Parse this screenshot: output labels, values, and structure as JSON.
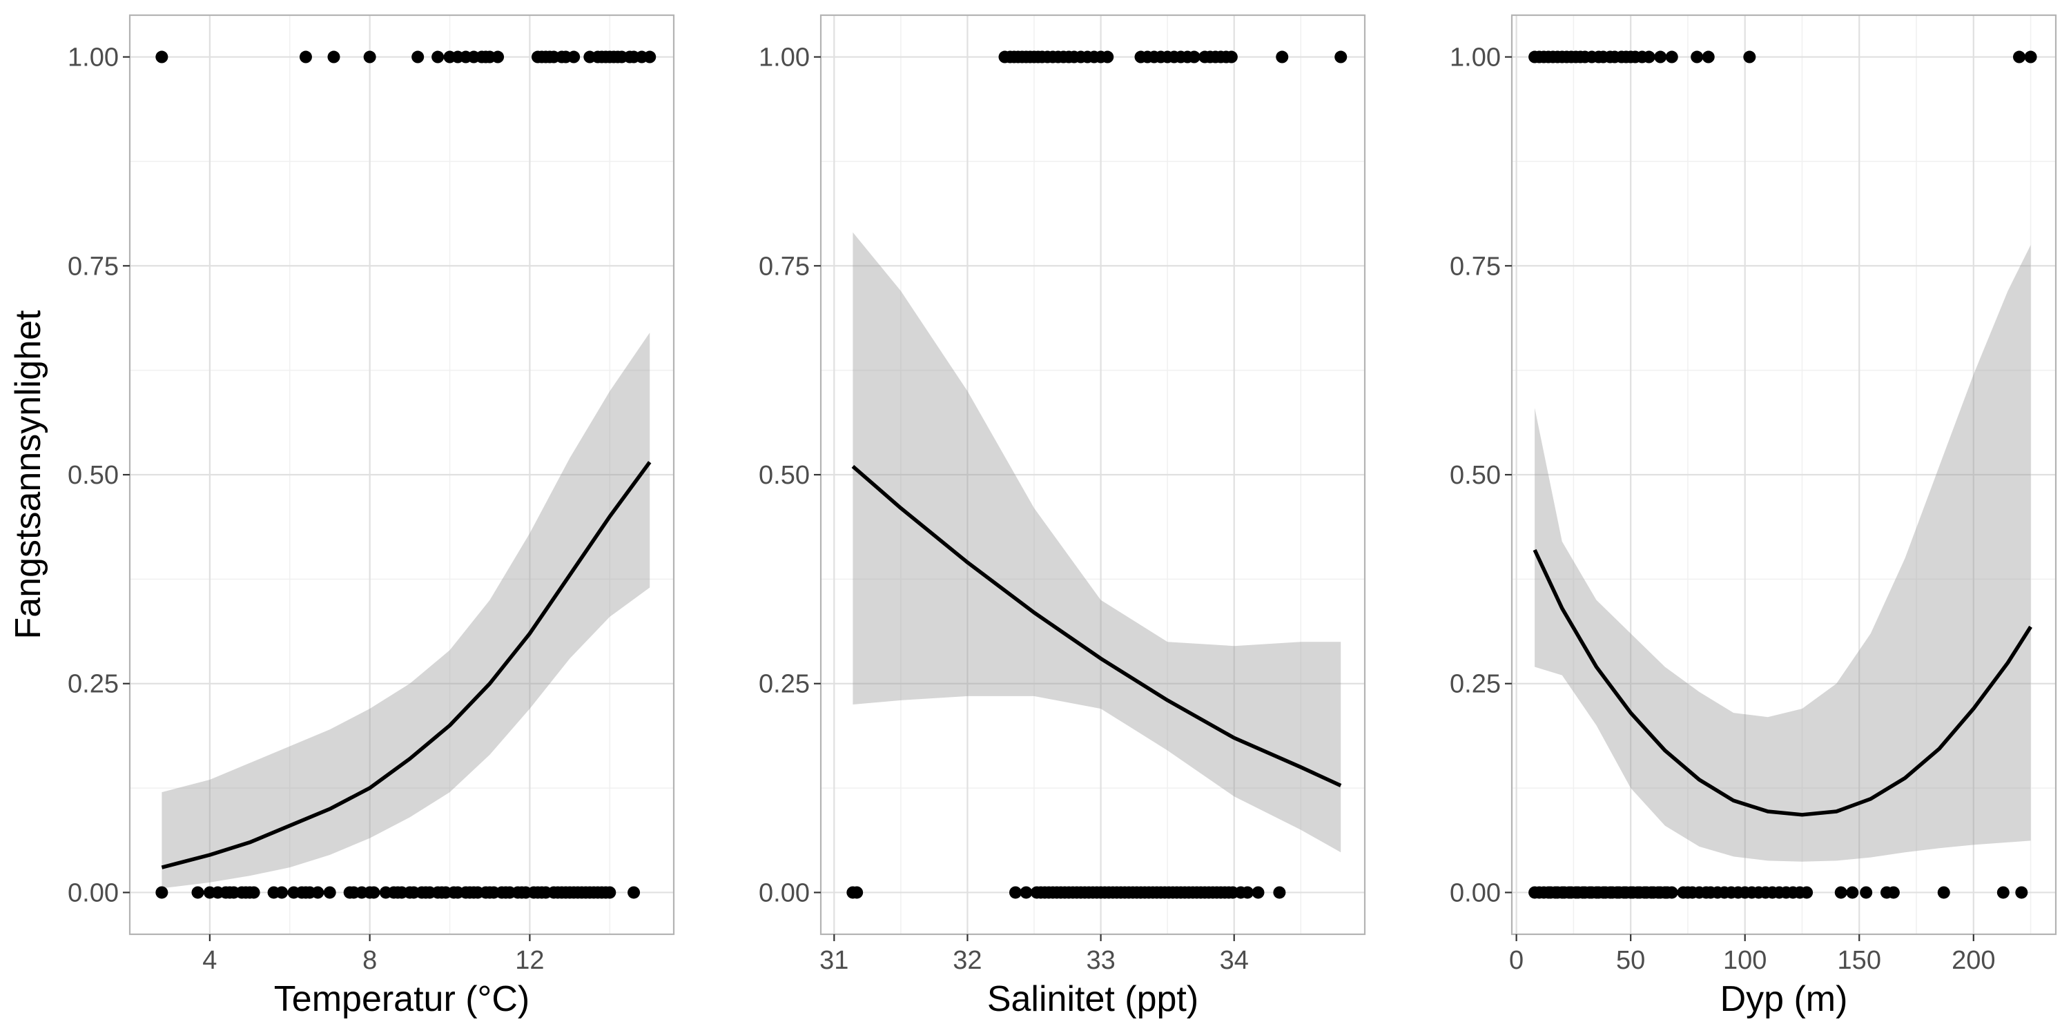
{
  "figure": {
    "ylabel": "Fangstsannsynlighet"
  },
  "chart_data": [
    {
      "type": "scatter",
      "xlabel": "Temperatur (°C)",
      "ylabel": "Fangstsannsynlighet",
      "xlim": [
        2.0,
        15.6
      ],
      "ylim": [
        -0.05,
        1.05
      ],
      "x_ticks": [
        4,
        8,
        12
      ],
      "y_ticks": [
        0.0,
        0.25,
        0.5,
        0.75,
        1.0
      ],
      "y_tick_labels": [
        "0.00",
        "0.25",
        "0.50",
        "0.75",
        "1.00"
      ],
      "grid": true,
      "points_y1": [
        2.8,
        6.4,
        7.1,
        8.0,
        9.2,
        9.7,
        10.0,
        10.2,
        10.4,
        10.6,
        10.8,
        10.9,
        11.0,
        11.2,
        12.2,
        12.3,
        12.4,
        12.5,
        12.6,
        12.8,
        12.9,
        13.1,
        13.5,
        13.7,
        13.8,
        13.9,
        14.0,
        14.1,
        14.2,
        14.3,
        14.5,
        14.6,
        14.8,
        15.0
      ],
      "points_y0": [
        2.8,
        3.7,
        4.0,
        4.2,
        4.4,
        4.5,
        4.6,
        4.8,
        4.9,
        5.0,
        5.1,
        5.6,
        5.8,
        6.1,
        6.3,
        6.4,
        6.5,
        6.7,
        7.0,
        7.5,
        7.6,
        7.8,
        8.0,
        8.1,
        8.4,
        8.6,
        8.7,
        8.8,
        9.0,
        9.1,
        9.3,
        9.4,
        9.5,
        9.7,
        9.8,
        9.9,
        10.1,
        10.2,
        10.4,
        10.5,
        10.6,
        10.7,
        10.9,
        11.0,
        11.1,
        11.3,
        11.4,
        11.5,
        11.7,
        11.8,
        11.9,
        12.1,
        12.2,
        12.3,
        12.4,
        12.6,
        12.7,
        12.8,
        12.9,
        13.0,
        13.1,
        13.2,
        13.3,
        13.4,
        13.5,
        13.6,
        13.7,
        13.8,
        13.9,
        14.0,
        14.6
      ],
      "fit": {
        "x": [
          2.8,
          4.0,
          5.0,
          6.0,
          7.0,
          8.0,
          9.0,
          10.0,
          11.0,
          12.0,
          13.0,
          14.0,
          15.0
        ],
        "y": [
          0.03,
          0.045,
          0.06,
          0.08,
          0.1,
          0.125,
          0.16,
          0.2,
          0.25,
          0.31,
          0.38,
          0.45,
          0.515
        ],
        "lower": [
          0.005,
          0.012,
          0.02,
          0.03,
          0.045,
          0.065,
          0.09,
          0.12,
          0.165,
          0.22,
          0.28,
          0.33,
          0.365
        ],
        "upper": [
          0.12,
          0.135,
          0.155,
          0.175,
          0.195,
          0.22,
          0.25,
          0.29,
          0.35,
          0.43,
          0.52,
          0.6,
          0.67
        ]
      }
    },
    {
      "type": "scatter",
      "xlabel": "Salinitet (ppt)",
      "ylabel": "",
      "xlim": [
        30.9,
        34.98
      ],
      "ylim": [
        -0.05,
        1.05
      ],
      "x_ticks": [
        31,
        32,
        33,
        34
      ],
      "y_ticks": [
        0.0,
        0.25,
        0.5,
        0.75,
        1.0
      ],
      "y_tick_labels": [
        "0.00",
        "0.25",
        "0.50",
        "0.75",
        "1.00"
      ],
      "grid": true,
      "points_y1": [
        32.28,
        32.32,
        32.35,
        32.38,
        32.41,
        32.44,
        32.47,
        32.5,
        32.53,
        32.56,
        32.6,
        32.64,
        32.68,
        32.72,
        32.76,
        32.8,
        32.85,
        32.9,
        32.95,
        33.0,
        33.05,
        33.3,
        33.35,
        33.4,
        33.45,
        33.5,
        33.55,
        33.6,
        33.65,
        33.7,
        33.78,
        33.82,
        33.86,
        33.9,
        33.94,
        33.98,
        34.36,
        34.8
      ],
      "points_y0": [
        31.14,
        31.17,
        32.36,
        32.44,
        32.52,
        32.55,
        32.58,
        32.61,
        32.64,
        32.67,
        32.7,
        32.73,
        32.76,
        32.79,
        32.82,
        32.85,
        32.88,
        32.91,
        32.94,
        32.97,
        33.0,
        33.03,
        33.06,
        33.09,
        33.12,
        33.15,
        33.18,
        33.21,
        33.24,
        33.27,
        33.3,
        33.33,
        33.36,
        33.39,
        33.42,
        33.45,
        33.48,
        33.51,
        33.54,
        33.57,
        33.6,
        33.63,
        33.66,
        33.69,
        33.72,
        33.75,
        33.78,
        33.81,
        33.84,
        33.87,
        33.9,
        33.93,
        33.96,
        33.99,
        34.05,
        34.1,
        34.18,
        34.34
      ],
      "fit": {
        "x": [
          31.14,
          31.5,
          32.0,
          32.5,
          33.0,
          33.5,
          34.0,
          34.5,
          34.8
        ],
        "y": [
          0.51,
          0.46,
          0.395,
          0.335,
          0.28,
          0.23,
          0.185,
          0.15,
          0.128
        ],
        "lower": [
          0.225,
          0.23,
          0.235,
          0.235,
          0.22,
          0.17,
          0.115,
          0.075,
          0.048
        ],
        "upper": [
          0.79,
          0.72,
          0.6,
          0.46,
          0.35,
          0.3,
          0.295,
          0.3,
          0.3
        ]
      }
    },
    {
      "type": "scatter",
      "xlabel": "Dyp (m)",
      "ylabel": "",
      "xlim": [
        -2,
        236
      ],
      "ylim": [
        -0.05,
        1.05
      ],
      "x_ticks": [
        0,
        50,
        100,
        150,
        200
      ],
      "y_ticks": [
        0.0,
        0.25,
        0.5,
        0.75,
        1.0
      ],
      "y_tick_labels": [
        "0.00",
        "0.25",
        "0.50",
        "0.75",
        "1.00"
      ],
      "grid": true,
      "points_y1": [
        8,
        10,
        12,
        14,
        16,
        18,
        20,
        22,
        24,
        26,
        28,
        30,
        33,
        36,
        38,
        41,
        43,
        46,
        48,
        50,
        52,
        55,
        58,
        63,
        68,
        79,
        84,
        102,
        220,
        225
      ],
      "points_y0": [
        8,
        10,
        12,
        14,
        15,
        17,
        18,
        20,
        21,
        23,
        24,
        26,
        27,
        29,
        30,
        32,
        33,
        35,
        36,
        38,
        39,
        41,
        42,
        44,
        45,
        47,
        48,
        50,
        51,
        53,
        54,
        56,
        57,
        59,
        60,
        62,
        63,
        65,
        66,
        68,
        73,
        75,
        77,
        80,
        83,
        85,
        88,
        91,
        94,
        97,
        100,
        103,
        106,
        109,
        112,
        115,
        118,
        121,
        124,
        127,
        142,
        147,
        153,
        162,
        165,
        187,
        213,
        221
      ],
      "fit": {
        "x": [
          8,
          20,
          35,
          50,
          65,
          80,
          95,
          110,
          125,
          140,
          155,
          170,
          185,
          200,
          215,
          225
        ],
        "y": [
          0.41,
          0.34,
          0.27,
          0.215,
          0.17,
          0.135,
          0.11,
          0.097,
          0.093,
          0.097,
          0.112,
          0.137,
          0.172,
          0.22,
          0.275,
          0.318
        ],
        "lower": [
          0.27,
          0.26,
          0.2,
          0.125,
          0.08,
          0.055,
          0.043,
          0.038,
          0.037,
          0.038,
          0.042,
          0.048,
          0.053,
          0.057,
          0.06,
          0.062
        ],
        "upper": [
          0.58,
          0.42,
          0.35,
          0.31,
          0.27,
          0.24,
          0.215,
          0.21,
          0.22,
          0.25,
          0.31,
          0.4,
          0.51,
          0.62,
          0.72,
          0.775
        ]
      }
    }
  ]
}
